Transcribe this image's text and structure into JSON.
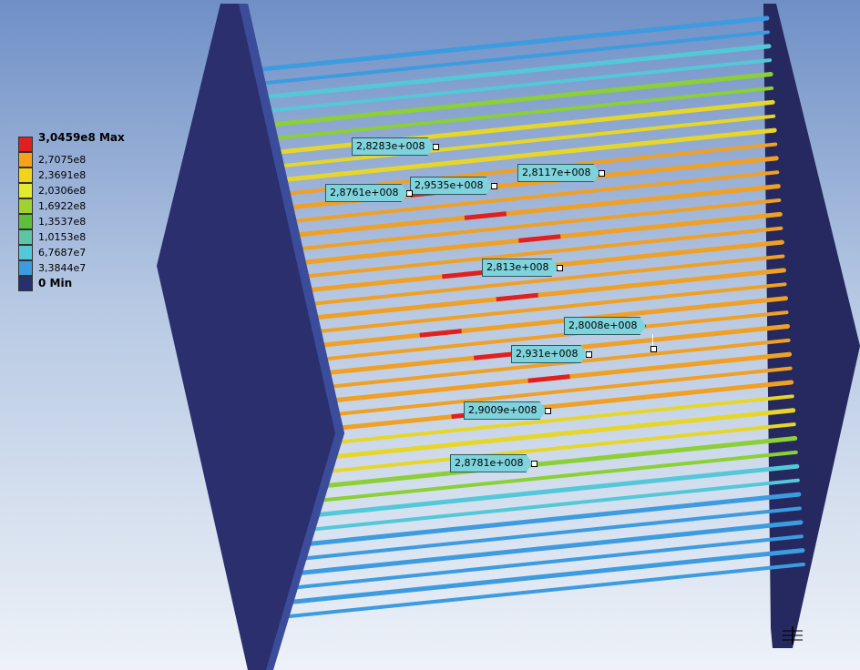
{
  "legend": {
    "rows": [
      {
        "label": "3,0459e8 Max",
        "color": "#e02020",
        "bold": true
      },
      {
        "label": "2,7075e8",
        "color": "#f7a21c",
        "bold": false
      },
      {
        "label": "2,3691e8",
        "color": "#f2d21d",
        "bold": false
      },
      {
        "label": "2,0306e8",
        "color": "#e1ea2c",
        "bold": false
      },
      {
        "label": "1,6922e8",
        "color": "#9fd22f",
        "bold": false
      },
      {
        "label": "1,3537e8",
        "color": "#5ebe3e",
        "bold": false
      },
      {
        "label": "1,0153e8",
        "color": "#5cc5a4",
        "bold": false
      },
      {
        "label": "6,7687e7",
        "color": "#54c8d9",
        "bold": false
      },
      {
        "label": "3,3844e7",
        "color": "#3d9be0",
        "bold": false
      },
      {
        "label": "0 Min",
        "color": "#26306e",
        "bold": true
      }
    ]
  },
  "probes": [
    {
      "label": "2,8283e+008"
    },
    {
      "label": "2,8117e+008"
    },
    {
      "label": "2,9535e+008"
    },
    {
      "label": "2,8761e+008"
    },
    {
      "label": "2,813e+008"
    },
    {
      "label": "2,8008e+008"
    },
    {
      "label": "2,931e+008"
    },
    {
      "label": "2,9009e+008"
    },
    {
      "label": "2,8781e+008"
    }
  ],
  "colors": {
    "plate": "#2b2f6e",
    "plate_edge": "#1e2258",
    "rod_low": "#3d9be0",
    "rod_mid": "#54c8d9",
    "rod_green": "#8ccf36",
    "rod_yellow": "#e7d62a",
    "rod_orange": "#f0a024",
    "rod_red": "#e02020"
  },
  "icons": {
    "triad": "coordinate-triad-icon"
  }
}
